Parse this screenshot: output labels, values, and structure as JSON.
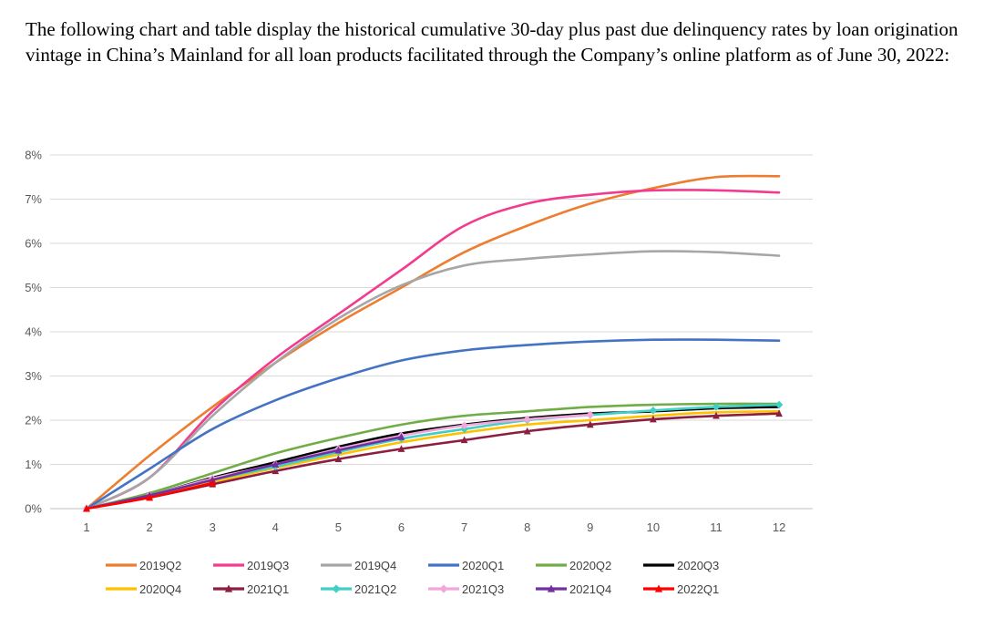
{
  "document": {
    "intro": "The following chart and table display the historical cumulative 30-day plus past due delinquency rates by loan origination vintage in China’s Mainland for all loan products facilitated through the Company’s online platform as of June 30, 2022:"
  },
  "chart_data": {
    "type": "line",
    "title": "",
    "xlabel": "",
    "ylabel": "",
    "x": [
      1,
      2,
      3,
      4,
      5,
      6,
      7,
      8,
      9,
      10,
      11,
      12
    ],
    "y_ticks": [
      "0%",
      "1%",
      "2%",
      "3%",
      "4%",
      "5%",
      "6%",
      "7%",
      "8%"
    ],
    "ylim": [
      0,
      8
    ],
    "grid": true,
    "grid_color": "#d9d9d9",
    "axis_label_color": "#595959",
    "legend_position": "bottom",
    "series": [
      {
        "name": "2019Q2",
        "color": "#ED7D31",
        "marker": null,
        "values": [
          0,
          1.2,
          2.3,
          3.3,
          4.2,
          5.0,
          5.8,
          6.4,
          6.9,
          7.25,
          7.5,
          7.52
        ]
      },
      {
        "name": "2019Q3",
        "color": "#F23A8F",
        "marker": null,
        "values": [
          0,
          0.7,
          2.2,
          3.4,
          4.4,
          5.4,
          6.4,
          6.9,
          7.1,
          7.2,
          7.2,
          7.15
        ]
      },
      {
        "name": "2019Q4",
        "color": "#A6A6A6",
        "marker": null,
        "values": [
          0,
          0.7,
          2.1,
          3.3,
          4.3,
          5.05,
          5.5,
          5.65,
          5.75,
          5.82,
          5.8,
          5.72
        ]
      },
      {
        "name": "2020Q1",
        "color": "#4472C4",
        "marker": null,
        "values": [
          0,
          0.9,
          1.8,
          2.45,
          2.95,
          3.35,
          3.58,
          3.7,
          3.78,
          3.82,
          3.82,
          3.8
        ]
      },
      {
        "name": "2020Q2",
        "color": "#70AD47",
        "marker": null,
        "values": [
          0,
          0.35,
          0.8,
          1.25,
          1.6,
          1.9,
          2.1,
          2.2,
          2.3,
          2.35,
          2.37,
          2.37
        ]
      },
      {
        "name": "2020Q3",
        "color": "#000000",
        "marker": null,
        "values": [
          0,
          0.3,
          0.7,
          1.05,
          1.4,
          1.7,
          1.9,
          2.05,
          2.15,
          2.2,
          2.27,
          2.3
        ]
      },
      {
        "name": "2020Q4",
        "color": "#FFC000",
        "marker": null,
        "values": [
          0,
          0.28,
          0.6,
          0.92,
          1.22,
          1.5,
          1.72,
          1.9,
          2.0,
          2.1,
          2.18,
          2.2
        ]
      },
      {
        "name": "2021Q1",
        "color": "#8C1F3F",
        "marker": "triangle",
        "values": [
          0,
          0.25,
          0.55,
          0.85,
          1.12,
          1.35,
          1.55,
          1.75,
          1.9,
          2.02,
          2.1,
          2.15
        ]
      },
      {
        "name": "2021Q2",
        "color": "#40CFC5",
        "marker": "diamond",
        "values": [
          0,
          0.3,
          0.65,
          0.95,
          1.28,
          1.58,
          1.8,
          2.0,
          2.12,
          2.22,
          2.3,
          2.35
        ]
      },
      {
        "name": "2021Q3",
        "color": "#F2A7DB",
        "marker": "diamond",
        "values": [
          0,
          0.3,
          0.68,
          1.0,
          1.35,
          1.65,
          1.88,
          2.02,
          2.12
        ]
      },
      {
        "name": "2021Q4",
        "color": "#7030A0",
        "marker": "triangle",
        "values": [
          0,
          0.3,
          0.65,
          1.0,
          1.32,
          1.62
        ]
      },
      {
        "name": "2022Q1",
        "color": "#FF0000",
        "marker": "triangle",
        "values": [
          0,
          0.25,
          0.58
        ]
      }
    ]
  }
}
